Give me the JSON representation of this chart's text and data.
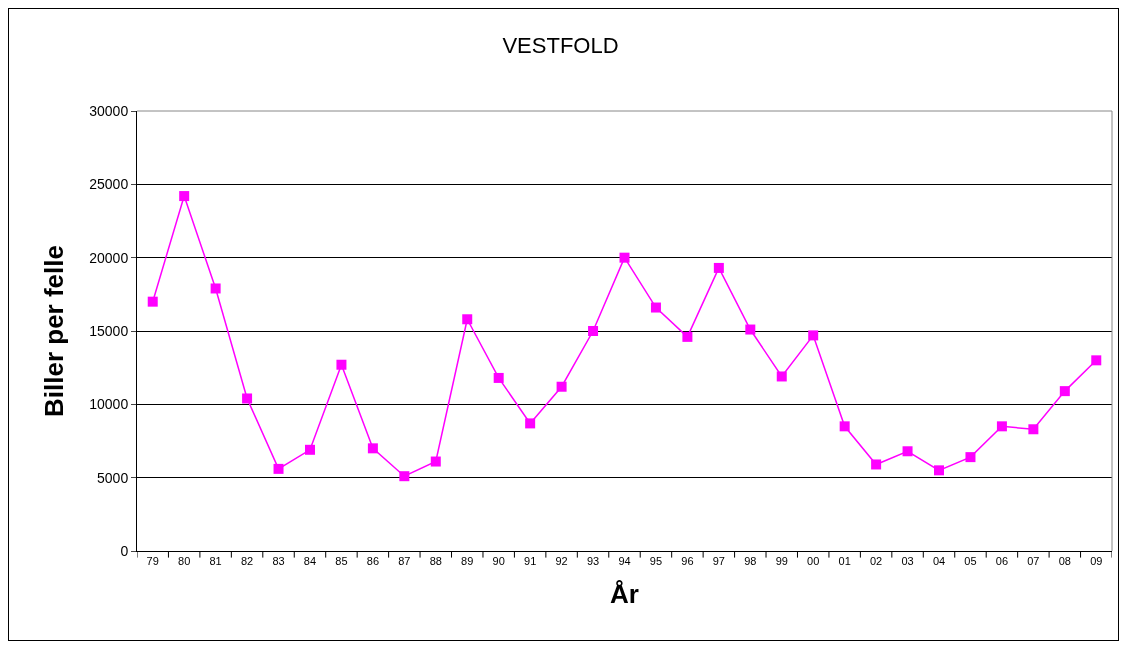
{
  "chart_data": {
    "type": "line",
    "title": "VESTFOLD",
    "xlabel": "År",
    "ylabel": "Biller per felle",
    "categories": [
      "79",
      "80",
      "81",
      "82",
      "83",
      "84",
      "85",
      "86",
      "87",
      "88",
      "89",
      "90",
      "91",
      "92",
      "93",
      "94",
      "95",
      "96",
      "97",
      "98",
      "99",
      "00",
      "01",
      "02",
      "03",
      "04",
      "05",
      "06",
      "07",
      "08",
      "09"
    ],
    "series": [
      {
        "color": "#ff00ff",
        "values": [
          17000,
          24200,
          17900,
          10400,
          5600,
          6900,
          12700,
          7000,
          5100,
          6100,
          15800,
          11800,
          8700,
          11200,
          15000,
          20000,
          16600,
          14600,
          19300,
          15100,
          11900,
          14700,
          8500,
          5900,
          6800,
          5500,
          6400,
          8500,
          8300,
          10900,
          13000
        ]
      }
    ],
    "ylim": [
      0,
      30000
    ],
    "yticks": [
      0,
      5000,
      10000,
      15000,
      20000,
      25000,
      30000
    ],
    "grid": "y",
    "marker": "square",
    "line_style": "solid"
  }
}
